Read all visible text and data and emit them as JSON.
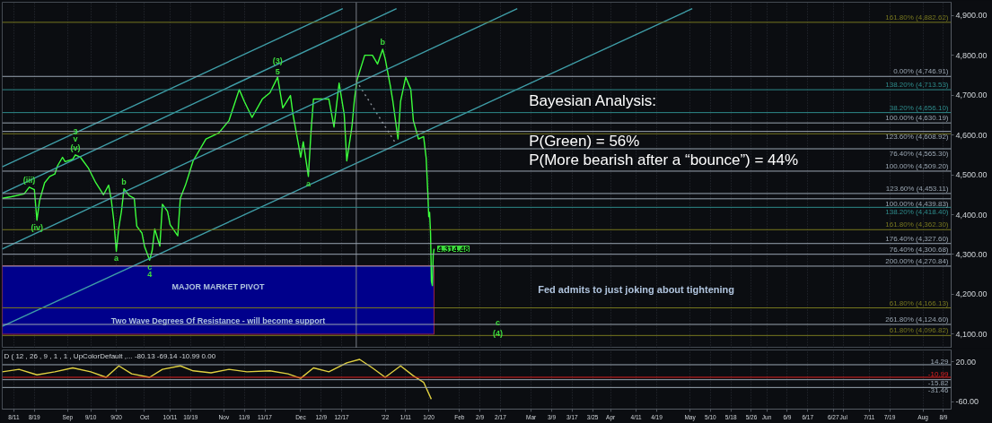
{
  "chart_data": [
    {
      "type": "line",
      "xlim": [
        "2021-08-06T11:00",
        "2022-08-12"
      ],
      "ylim": [
        4065,
        4933
      ],
      "xticks": [
        {
          "value": "2021-08-11",
          "label": null
        },
        {
          "value": "2021-08-19",
          "label": null
        },
        {
          "value": "2021-09-01",
          "label": null
        },
        {
          "value": "2021-09-10",
          "label": null
        },
        {
          "value": "2021-09-20",
          "label": null
        },
        {
          "value": "2021-10-01",
          "label": null
        },
        {
          "value": "2021-10-11",
          "label": null
        },
        {
          "value": "2021-10-19",
          "label": null
        },
        {
          "value": "2021-11-01",
          "label": null
        },
        {
          "value": "2021-11-09",
          "label": null
        },
        {
          "value": "2021-11-17",
          "label": null
        },
        {
          "value": "2021-12-01",
          "label": null
        },
        {
          "value": "2021-12-09",
          "label": null
        },
        {
          "value": "2021-12-17",
          "label": null
        },
        {
          "value": "2022-01-03",
          "label": null
        },
        {
          "value": "2022-01-11",
          "label": null
        },
        {
          "value": "2022-01-20",
          "label": null
        },
        {
          "value": "2022-02-01",
          "label": null
        },
        {
          "value": "2022-02-09",
          "label": null
        },
        {
          "value": "2022-02-17",
          "label": null
        },
        {
          "value": "2022-03-01",
          "label": null
        },
        {
          "value": "2022-03-09",
          "label": null
        },
        {
          "value": "2022-03-17",
          "label": null
        },
        {
          "value": "2022-03-25",
          "label": null
        },
        {
          "value": "2022-04-01",
          "label": null
        },
        {
          "value": "2022-04-11",
          "label": null
        },
        {
          "value": "2022-04-19",
          "label": null
        },
        {
          "value": "2022-05-02",
          "label": null
        },
        {
          "value": "2022-05-10",
          "label": null
        },
        {
          "value": "2022-05-18",
          "label": null
        },
        {
          "value": "2022-05-26",
          "label": null
        },
        {
          "value": "2022-06-01",
          "label": null
        },
        {
          "value": "2022-06-09",
          "label": null
        },
        {
          "value": "2022-06-17",
          "label": null
        },
        {
          "value": "2022-06-27",
          "label": null
        },
        {
          "value": "2022-07-01",
          "label": null
        },
        {
          "value": "2022-07-11",
          "label": null
        },
        {
          "value": "2022-07-19",
          "label": null
        },
        {
          "value": "2022-08-01",
          "label": null
        },
        {
          "value": "2022-08-09",
          "label": null
        }
      ],
      "yticks": [
        {
          "value": 4100,
          "label": "4,100.00"
        },
        {
          "value": 4200,
          "label": "4,200.00"
        },
        {
          "value": 4300,
          "label": "4,300.00"
        },
        {
          "value": 4400,
          "label": "4,400.00"
        },
        {
          "value": 4500,
          "label": "4,500.00"
        },
        {
          "value": 4600,
          "label": "4,600.00"
        },
        {
          "value": 4700,
          "label": "4,700.00"
        },
        {
          "value": 4800,
          "label": "4,800.00"
        },
        {
          "value": 4900,
          "label": "4,900.00"
        }
      ],
      "tick_labels": "y",
      "grid": "x",
      "series": [
        {
          "color": "#3cff3c",
          "x": [
            "2021-08-06T11:00",
            "2021-08-10",
            "2021-08-15",
            "2021-08-17",
            "2021-08-19",
            "2021-08-20",
            "2021-08-21",
            "2021-08-23",
            "2021-08-25",
            "2021-08-27",
            "2021-08-28",
            "2021-08-30",
            "2021-08-31",
            "2021-09-03",
            "2021-09-04",
            "2021-09-06",
            "2021-09-09",
            "2021-09-12",
            "2021-09-15",
            "2021-09-17",
            "2021-09-18",
            "2021-09-19",
            "2021-09-20",
            "2021-09-21",
            "2021-09-22",
            "2021-09-23",
            "2021-09-25",
            "2021-09-27",
            "2021-09-28",
            "2021-09-30",
            "2021-10-01",
            "2021-10-03",
            "2021-10-04",
            "2021-10-05",
            "2021-10-07",
            "2021-10-08",
            "2021-10-10",
            "2021-10-11",
            "2021-10-14",
            "2021-10-15",
            "2021-10-17",
            "2021-10-20",
            "2021-10-25",
            "2021-10-30",
            "2021-11-03",
            "2021-11-05",
            "2021-11-07",
            "2021-11-09",
            "2021-11-12",
            "2021-11-16",
            "2021-11-19",
            "2021-11-22",
            "2021-11-24",
            "2021-11-27",
            "2021-11-28",
            "2021-11-30",
            "2021-12-01",
            "2021-12-02",
            "2021-12-04",
            "2021-12-05",
            "2021-12-06",
            "2021-12-12",
            "2021-12-14",
            "2021-12-16",
            "2021-12-18",
            "2021-12-19",
            "2021-12-21",
            "2021-12-22",
            "2021-12-23",
            "2021-12-26",
            "2021-12-29",
            "2021-12-31",
            "2022-01-02",
            "2022-01-03",
            "2022-01-05",
            "2022-01-06",
            "2022-01-08",
            "2022-01-09",
            "2022-01-11",
            "2022-01-13",
            "2022-01-14",
            "2022-01-16",
            "2022-01-18",
            "2022-01-19",
            "2022-01-19T16:00",
            "2022-01-20T00:00",
            "2022-01-20T08:00",
            "2022-01-20T17:00",
            "2022-01-21T01:00",
            "2022-01-21T10:00",
            "2022-01-21T18:00",
            "2022-01-22T02:00"
          ],
          "values": [
            4441,
            4445,
            4452,
            4469,
            4463,
            4386,
            4434,
            4480,
            4496,
            4502,
            4522,
            4544,
            4533,
            4539,
            4550,
            4544,
            4518,
            4480,
            4450,
            4474,
            4439,
            4386,
            4308,
            4369,
            4408,
            4465,
            4448,
            4441,
            4371,
            4354,
            4321,
            4286,
            4310,
            4364,
            4321,
            4426,
            4408,
            4375,
            4347,
            4441,
            4474,
            4535,
            4590,
            4605,
            4636,
            4675,
            4714,
            4684,
            4644,
            4690,
            4706,
            4745,
            4668,
            4699,
            4651,
            4581,
            4544,
            4583,
            4496,
            4605,
            4690,
            4690,
            4620,
            4730,
            4651,
            4535,
            4620,
            4690,
            4738,
            4800,
            4800,
            4778,
            4815,
            4791,
            4723,
            4684,
            4590,
            4684,
            4745,
            4714,
            4636,
            4590,
            4596,
            4542,
            4450,
            4395,
            4406,
            4354,
            4233,
            4222,
            4299,
            4314.48
          ]
        },
        {
          "color": "#3f9ea8",
          "x": [
            "2021-08-06T11:00",
            "2021-12-17T10:00"
          ],
          "values": [
            4520,
            4917
          ]
        },
        {
          "color": "#3f9ea8",
          "x": [
            "2021-08-06T11:00",
            "2022-01-07T10:00"
          ],
          "values": [
            4454,
            4917
          ]
        },
        {
          "color": "#3f9ea8",
          "x": [
            "2021-08-06T11:00",
            "2022-02-23T14:00"
          ],
          "values": [
            4314,
            4917
          ]
        },
        {
          "color": "#3f9ea8",
          "x": [
            "2021-08-06T11:00",
            "2022-05-02T22:00"
          ],
          "values": [
            4120,
            4917
          ]
        },
        {
          "color": "#8a9098",
          "x": [
            "2021-12-22T17:00",
            "2022-01-06T17:00"
          ],
          "values": [
            4736,
            4583
          ],
          "line_style": "dotted"
        }
      ],
      "bands": [
        {
          "axis": "y",
          "from": 4166.13,
          "to": 4272,
          "label": "MAJOR MARKET PIVOT",
          "color": "#00008b"
        },
        {
          "axis": "y",
          "from": 4100,
          "to": 4166.13,
          "label": "Two Wave Degrees Of Resistance - will become support",
          "color": "#00008b"
        }
      ],
      "ref_lines": [
        {
          "axis": "x",
          "value": "2021-12-22T17:00",
          "color": "#7a8088"
        },
        {
          "axis": "y",
          "value": 4882.62,
          "label": "161.80% (4,882.62)",
          "color": "#77771f"
        },
        {
          "axis": "y",
          "value": 4746.91,
          "label": "0.00% (4,746.91)",
          "color": "#9aa6b2"
        },
        {
          "axis": "y",
          "value": 4713.53,
          "label": "138.20% (4,713.53)",
          "color": "#2e8b8b"
        },
        {
          "axis": "y",
          "value": 4656.1,
          "label": "38.20% (4,656.10)",
          "color": "#2e8b8b"
        },
        {
          "axis": "y",
          "value": 4630.19,
          "label": "100.00% (4,630.19)",
          "color": "#9aa6b2"
        },
        {
          "axis": "y",
          "value": 4608.92,
          "label": "123.60% (4,608.92)",
          "color": "#9aa6b2"
        },
        {
          "axis": "y",
          "value": 4603,
          "label": null,
          "color": "#77771f"
        },
        {
          "axis": "y",
          "value": 4565.3,
          "label": "76.40% (4,565.30)",
          "color": "#9aa6b2"
        },
        {
          "axis": "y",
          "value": 4509.2,
          "label": "100.00% (4,509.20)",
          "color": "#9aa6b2"
        },
        {
          "axis": "y",
          "value": 4453.11,
          "label": "123.60% (4,453.11)",
          "color": "#9aa6b2"
        },
        {
          "axis": "y",
          "value": 4439.83,
          "label": "100.00% (4,439.83)",
          "color": "#9aa6b2"
        },
        {
          "axis": "y",
          "value": 4418.4,
          "label": "138.20% (4,418.40)",
          "color": "#2e8b8b"
        },
        {
          "axis": "y",
          "value": 4362.3,
          "label": "161.80% (4,362.30)",
          "color": "#77771f"
        },
        {
          "axis": "y",
          "value": 4327.6,
          "label": "176.40% (4,327.60)",
          "color": "#9aa6b2"
        },
        {
          "axis": "y",
          "value": 4300.68,
          "label": "76.40% (4,300.68)",
          "color": "#9aa6b2"
        },
        {
          "axis": "y",
          "value": 4270.84,
          "label": "200.00% (4,270.84)",
          "color": "#9aa6b2"
        },
        {
          "axis": "y",
          "value": 4166.13,
          "label": "61.80% (4,166.13)",
          "color": "#77771f"
        },
        {
          "axis": "y",
          "value": 4124.6,
          "label": "261.80% (4,124.60)",
          "color": "#9aa6b2"
        },
        {
          "axis": "y",
          "value": 4096.82,
          "label": "61.80% (4,096.82)",
          "color": "#77771f"
        }
      ],
      "annotations": [
        "Bayesian Analysis:",
        "P(Green) = 56%",
        "P(More bearish after a “bounce”) = 44%",
        "Fed admits to just joking about tightening",
        {
          "text": "(iii)",
          "x": "2021-08-17",
          "y": 4469
        },
        {
          "text": "(iv)",
          "x": "2021-08-20",
          "y": 4386
        },
        {
          "text": "(v)",
          "x": "2021-09-04",
          "y": 4550
        },
        {
          "text": "v",
          "x": "2021-09-04",
          "y": 4550
        },
        {
          "text": "3",
          "x": "2021-09-04",
          "y": 4550
        },
        {
          "text": "b",
          "x": "2021-09-23",
          "y": 4465
        },
        {
          "text": "a",
          "x": "2021-09-20",
          "y": 4308
        },
        {
          "text": "c",
          "x": "2021-10-03",
          "y": 4286
        },
        {
          "text": "4",
          "x": "2021-10-03",
          "y": 4286
        },
        {
          "text": "5",
          "x": "2021-11-22",
          "y": 4745
        },
        {
          "text": "(3)",
          "x": "2021-11-22",
          "y": 4745
        },
        {
          "text": "a",
          "x": "2021-12-04",
          "y": 4496
        },
        {
          "text": "b",
          "x": "2022-01-02",
          "y": 4815
        },
        {
          "text": "c",
          "x": "2022-02-16",
          "y": 4128
        },
        {
          "text": "(4)",
          "x": "2022-02-16",
          "y": 4102
        },
        {
          "text": "4,314.48",
          "x": "2022-01-22T02:00",
          "y": 4314.48
        }
      ]
    },
    {
      "type": "line",
      "title": "D ( 12 , 26 , 9 , 1 , 1 , UpColorDefault ,...  -80.13  -69.14  -10.99  0.00",
      "xlim": [
        "2021-08-06T11:00",
        "2022-08-12"
      ],
      "ylim": [
        -75,
        44
      ],
      "xticks": [
        {
          "value": "2021-08-11",
          "label": "8/11"
        },
        {
          "value": "2021-08-19",
          "label": "8/19"
        },
        {
          "value": "2021-09-01",
          "label": "Sep"
        },
        {
          "value": "2021-09-10",
          "label": "9/10"
        },
        {
          "value": "2021-09-20",
          "label": "9/20"
        },
        {
          "value": "2021-10-01",
          "label": "Oct"
        },
        {
          "value": "2021-10-11",
          "label": "10/11"
        },
        {
          "value": "2021-10-19",
          "label": "10/19"
        },
        {
          "value": "2021-11-01",
          "label": "Nov"
        },
        {
          "value": "2021-11-09",
          "label": "11/9"
        },
        {
          "value": "2021-11-17",
          "label": "11/17"
        },
        {
          "value": "2021-12-01",
          "label": "Dec"
        },
        {
          "value": "2021-12-09",
          "label": "12/9"
        },
        {
          "value": "2021-12-17",
          "label": "12/17"
        },
        {
          "value": "2022-01-03",
          "label": "'22"
        },
        {
          "value": "2022-01-11",
          "label": "1/11"
        },
        {
          "value": "2022-01-20",
          "label": "1/20"
        },
        {
          "value": "2022-02-01",
          "label": "Feb"
        },
        {
          "value": "2022-02-09",
          "label": "2/9"
        },
        {
          "value": "2022-02-17",
          "label": "2/17"
        },
        {
          "value": "2022-03-01",
          "label": "Mar"
        },
        {
          "value": "2022-03-09",
          "label": "3/9"
        },
        {
          "value": "2022-03-17",
          "label": "3/17"
        },
        {
          "value": "2022-03-25",
          "label": "3/25"
        },
        {
          "value": "2022-04-01",
          "label": "Apr"
        },
        {
          "value": "2022-04-11",
          "label": "4/11"
        },
        {
          "value": "2022-04-19",
          "label": "4/19"
        },
        {
          "value": "2022-05-02",
          "label": "May"
        },
        {
          "value": "2022-05-10",
          "label": "5/10"
        },
        {
          "value": "2022-05-18",
          "label": "5/18"
        },
        {
          "value": "2022-05-26",
          "label": "5/26"
        },
        {
          "value": "2022-06-01",
          "label": "Jun"
        },
        {
          "value": "2022-06-09",
          "label": "6/9"
        },
        {
          "value": "2022-06-17",
          "label": "6/17"
        },
        {
          "value": "2022-06-27",
          "label": "6/27"
        },
        {
          "value": "2022-07-01",
          "label": "Jul"
        },
        {
          "value": "2022-07-11",
          "label": "7/11"
        },
        {
          "value": "2022-07-19",
          "label": "7/19"
        },
        {
          "value": "2022-08-01",
          "label": "Aug"
        },
        {
          "value": "2022-08-09",
          "label": "8/9"
        }
      ],
      "yticks": [
        {
          "value": 20,
          "label": "20.00"
        },
        {
          "value": -60,
          "label": "-60.00"
        }
      ],
      "grid": "x",
      "series": [
        {
          "color": "#e0d040",
          "x": [
            "2021-08-06T11:00",
            "2021-08-13",
            "2021-08-20",
            "2021-08-27",
            "2021-09-03",
            "2021-09-10",
            "2021-09-16",
            "2021-09-21",
            "2021-09-26",
            "2021-10-03",
            "2021-10-08",
            "2021-10-15",
            "2021-10-20",
            "2021-10-27",
            "2021-11-03",
            "2021-11-10",
            "2021-11-19",
            "2021-11-26",
            "2021-12-01",
            "2021-12-06",
            "2021-12-12",
            "2021-12-19",
            "2021-12-24",
            "2021-12-29",
            "2022-01-03",
            "2022-01-09",
            "2022-01-14",
            "2022-01-18",
            "2022-01-21"
          ],
          "values": [
            0,
            5,
            -6,
            0,
            8,
            0,
            -11,
            12,
            -4,
            -11,
            5,
            12,
            2,
            -2,
            5,
            0,
            2,
            -4,
            -13,
            8,
            0,
            18,
            25,
            8,
            -11,
            12,
            -8,
            -21,
            -55
          ]
        }
      ],
      "ref_lines": [
        {
          "axis": "y",
          "value": 14.29,
          "label": "14.29",
          "color": "#9aa6b2"
        },
        {
          "axis": "y",
          "value": -10.99,
          "label": "-10.99",
          "color": "#e02020"
        },
        {
          "axis": "y",
          "value": -15.82,
          "label": "-15.82",
          "color": "#9aa6b2"
        },
        {
          "axis": "y",
          "value": -31.46,
          "label": "-31.46",
          "color": "#9aa6b2"
        }
      ]
    }
  ]
}
